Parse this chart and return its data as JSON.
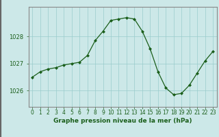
{
  "hours": [
    0,
    1,
    2,
    3,
    4,
    5,
    6,
    7,
    8,
    9,
    10,
    11,
    12,
    13,
    14,
    15,
    16,
    17,
    18,
    19,
    20,
    21,
    22,
    23
  ],
  "pressure": [
    1026.5,
    1026.7,
    1026.8,
    1026.85,
    1026.95,
    1027.0,
    1027.05,
    1027.3,
    1027.85,
    1028.2,
    1028.6,
    1028.65,
    1028.7,
    1028.65,
    1028.2,
    1027.55,
    1026.7,
    1026.1,
    1025.85,
    1025.9,
    1026.2,
    1026.65,
    1027.1,
    1027.45
  ],
  "line_color": "#1a5e1a",
  "marker": "D",
  "marker_size": 2.0,
  "background_color": "#cce8e8",
  "grid_color": "#99cccc",
  "ylim": [
    1025.4,
    1029.1
  ],
  "yticks": [
    1026,
    1027,
    1028
  ],
  "xlabel": "Graphe pression niveau de la mer (hPa)",
  "xlabel_fontsize": 6.5,
  "tick_fontsize": 6,
  "label_color": "#1a5e1a",
  "border_color": "#888888",
  "left_border_color": "#666666"
}
